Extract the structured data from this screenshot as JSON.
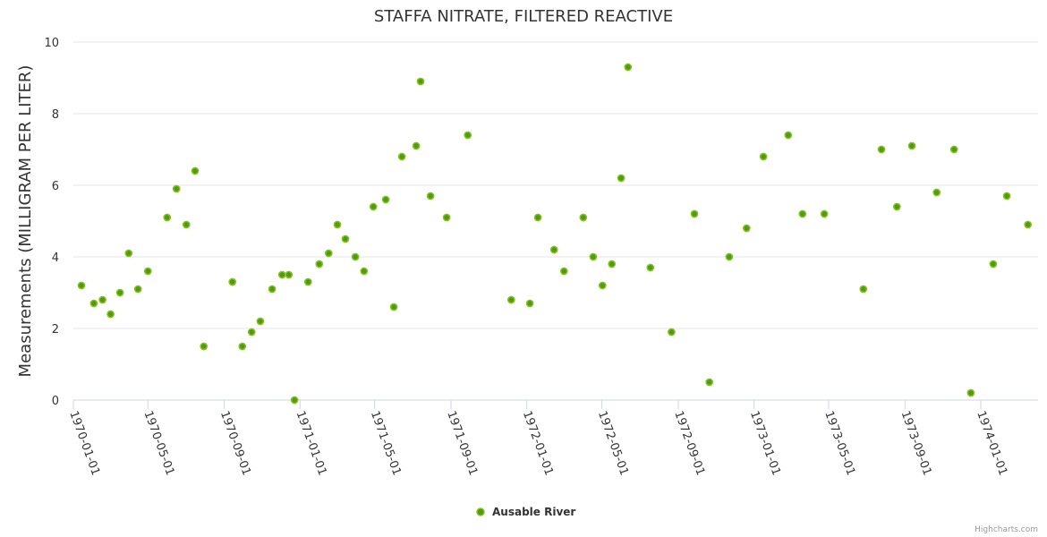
{
  "chart_data": {
    "type": "scatter",
    "title": "STAFFA NITRATE, FILTERED REACTIVE",
    "xlabel": "",
    "ylabel": "Measurements (MILLIGRAM PER LITER)",
    "ylim": [
      0,
      10
    ],
    "yticks": [
      "0",
      "2",
      "4",
      "6",
      "8",
      "10"
    ],
    "xlim": [
      "1970-01-01",
      "1974-04-15"
    ],
    "xticks": [
      "1970-01-01",
      "1970-05-01",
      "1970-09-01",
      "1971-01-01",
      "1971-05-01",
      "1971-09-01",
      "1972-01-01",
      "1972-05-01",
      "1972-09-01",
      "1973-01-01",
      "1973-05-01",
      "1973-09-01",
      "1974-01-01"
    ],
    "grid": true,
    "legend_position": "bottom-center",
    "colors": {
      "marker_fill": "#4a9c1a",
      "marker_stroke": "#8cc21a",
      "grid": "#e6e6e6",
      "axis": "#ccd6eb"
    },
    "series": [
      {
        "name": "Ausable River",
        "points": [
          [
            "1970-01-14",
            3.2
          ],
          [
            "1970-02-03",
            2.7
          ],
          [
            "1970-02-17",
            2.8
          ],
          [
            "1970-03-02",
            2.4
          ],
          [
            "1970-03-17",
            3.0
          ],
          [
            "1970-03-31",
            4.1
          ],
          [
            "1970-04-15",
            3.1
          ],
          [
            "1970-05-01",
            3.6
          ],
          [
            "1970-06-01",
            5.1
          ],
          [
            "1970-06-16",
            5.9
          ],
          [
            "1970-07-02",
            4.9
          ],
          [
            "1970-07-16",
            6.4
          ],
          [
            "1970-07-30",
            1.5
          ],
          [
            "1970-09-14",
            3.3
          ],
          [
            "1970-09-30",
            1.5
          ],
          [
            "1970-10-15",
            1.9
          ],
          [
            "1970-10-29",
            2.2
          ],
          [
            "1970-11-17",
            3.1
          ],
          [
            "1970-12-03",
            3.5
          ],
          [
            "1970-12-14",
            3.5
          ],
          [
            "1970-12-23",
            0.0
          ],
          [
            "1971-01-14",
            3.3
          ],
          [
            "1971-02-01",
            3.8
          ],
          [
            "1971-02-16",
            4.1
          ],
          [
            "1971-03-02",
            4.9
          ],
          [
            "1971-03-15",
            4.5
          ],
          [
            "1971-03-31",
            4.0
          ],
          [
            "1971-04-14",
            3.6
          ],
          [
            "1971-04-29",
            5.4
          ],
          [
            "1971-05-19",
            5.6
          ],
          [
            "1971-06-01",
            2.6
          ],
          [
            "1971-06-14",
            6.8
          ],
          [
            "1971-07-07",
            7.1
          ],
          [
            "1971-07-14",
            8.9
          ],
          [
            "1971-07-30",
            5.7
          ],
          [
            "1971-08-25",
            5.1
          ],
          [
            "1971-09-28",
            7.4
          ],
          [
            "1971-12-07",
            2.8
          ],
          [
            "1972-01-06",
            2.7
          ],
          [
            "1972-01-19",
            5.1
          ],
          [
            "1972-02-14",
            4.2
          ],
          [
            "1972-03-01",
            3.6
          ],
          [
            "1972-04-01",
            5.1
          ],
          [
            "1972-04-17",
            4.0
          ],
          [
            "1972-05-02",
            3.2
          ],
          [
            "1972-05-17",
            3.8
          ],
          [
            "1972-06-01",
            6.2
          ],
          [
            "1972-06-12",
            9.3
          ],
          [
            "1972-07-18",
            3.7
          ],
          [
            "1972-08-21",
            1.9
          ],
          [
            "1972-09-27",
            5.2
          ],
          [
            "1972-10-21",
            0.5
          ],
          [
            "1972-11-22",
            4.0
          ],
          [
            "1972-12-20",
            4.8
          ],
          [
            "1973-01-16",
            6.8
          ],
          [
            "1973-02-25",
            7.4
          ],
          [
            "1973-03-20",
            5.2
          ],
          [
            "1973-04-24",
            5.2
          ],
          [
            "1973-06-26",
            3.1
          ],
          [
            "1973-07-25",
            7.0
          ],
          [
            "1973-08-19",
            5.4
          ],
          [
            "1973-09-12",
            7.1
          ],
          [
            "1973-10-22",
            5.8
          ],
          [
            "1973-11-19",
            7.0
          ],
          [
            "1973-12-16",
            0.2
          ],
          [
            "1974-01-21",
            3.8
          ],
          [
            "1974-02-12",
            5.7
          ],
          [
            "1974-03-18",
            4.9
          ]
        ]
      }
    ],
    "credits": "Highcharts.com"
  }
}
